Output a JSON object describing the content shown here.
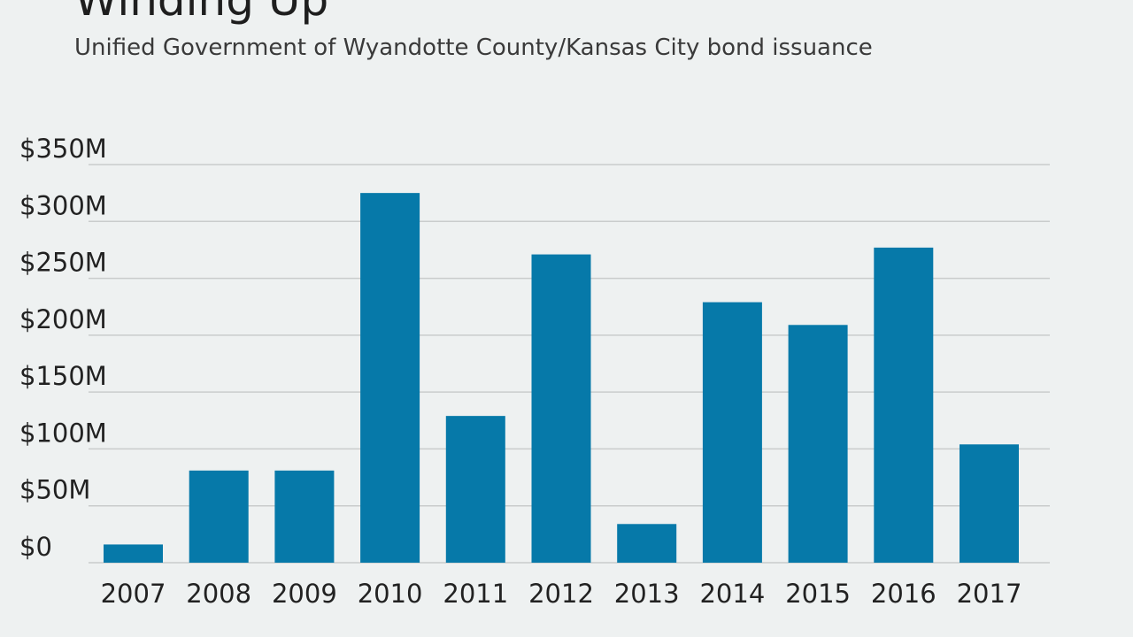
{
  "chart_data": {
    "type": "bar",
    "title": "Winding Up",
    "subtitle": "Unified Government of Wyandotte County/Kansas City bond issuance",
    "xlabel": "",
    "ylabel": "",
    "categories": [
      "2007",
      "2008",
      "2009",
      "2010",
      "2011",
      "2012",
      "2013",
      "2014",
      "2015",
      "2016",
      "2017"
    ],
    "values": [
      16,
      81,
      81,
      325,
      129,
      271,
      34,
      229,
      209,
      277,
      104
    ],
    "unit": "$M",
    "ylim": [
      0,
      350
    ],
    "yticks": [
      0,
      50,
      100,
      150,
      200,
      250,
      300,
      350
    ],
    "ytick_labels": [
      "$0",
      "$50M",
      "$100M",
      "$150M",
      "$200M",
      "$250M",
      "$300M",
      "$350M"
    ],
    "grid": true,
    "bar_color": "#0679a9",
    "background_color": "#eef1f1"
  }
}
